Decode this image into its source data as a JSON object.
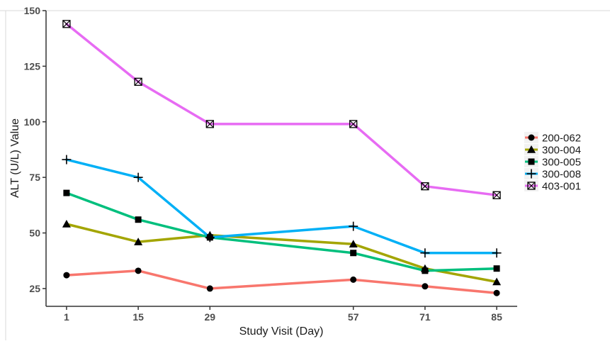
{
  "chart_data": {
    "type": "line",
    "xlabel": "Study Visit (Day)",
    "ylabel": "ALT (U/L) Value",
    "x": [
      1,
      15,
      29,
      57,
      71,
      85
    ],
    "x_ticks": [
      "1",
      "15",
      "29",
      "57",
      "71",
      "85"
    ],
    "y_ticks": [
      "25",
      "50",
      "75",
      "100",
      "125",
      "150"
    ],
    "xlim": [
      -3,
      89
    ],
    "ylim": [
      17,
      150
    ],
    "grid": false,
    "legend_position": "right",
    "series": [
      {
        "name": "200-062",
        "color": "#F8766D",
        "marker": "circle",
        "values": [
          31,
          33,
          25,
          29,
          26,
          23
        ]
      },
      {
        "name": "300-004",
        "color": "#A3A500",
        "marker": "triangle",
        "values": [
          54,
          46,
          49,
          45,
          34,
          28
        ]
      },
      {
        "name": "300-005",
        "color": "#00BF7D",
        "marker": "square",
        "values": [
          68,
          56,
          48,
          41,
          33,
          34
        ]
      },
      {
        "name": "300-008",
        "color": "#00B0F6",
        "marker": "plus",
        "values": [
          83,
          75,
          48,
          53,
          41,
          41
        ]
      },
      {
        "name": "403-001",
        "color": "#E76BF3",
        "marker": "square-x",
        "values": [
          144,
          118,
          99,
          99,
          71,
          67
        ]
      }
    ]
  }
}
